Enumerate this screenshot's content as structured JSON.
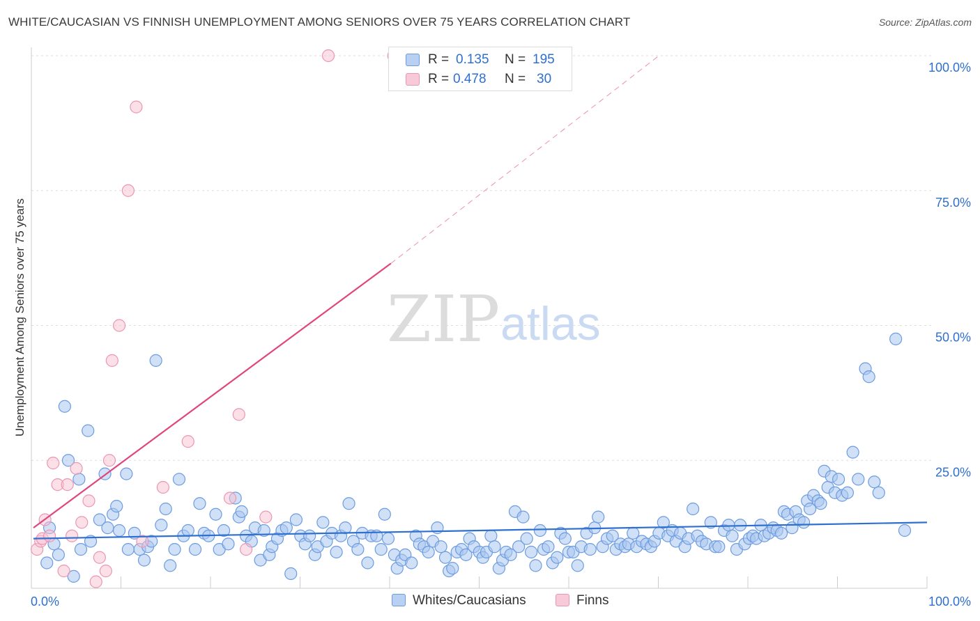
{
  "title": "WHITE/CAUCASIAN VS FINNISH UNEMPLOYMENT AMONG SENIORS OVER 75 YEARS CORRELATION CHART",
  "source": "Source: ZipAtlas.com",
  "watermark": {
    "zip": "ZIP",
    "atlas": "atlas"
  },
  "colors": {
    "blue": "#2e6fcf",
    "blue_fill": "#a9c6ef",
    "blue_stroke": "#6b9be0",
    "pink": "#e0457e",
    "pink_fill": "#f7c1d2",
    "pink_stroke": "#ec95b3",
    "grid": "#dddddd"
  },
  "legend": {
    "r_label": "R =",
    "n_label": "N =",
    "rows": [
      {
        "series": "Whites/Caucasians",
        "r": "0.135",
        "n": "195"
      },
      {
        "series": "Finns",
        "r": "0.478",
        "n": "30"
      }
    ]
  },
  "bottom_legend": [
    "Whites/Caucasians",
    "Finns"
  ],
  "chart_data": {
    "type": "scatter",
    "title": "WHITE/CAUCASIAN VS FINNISH UNEMPLOYMENT AMONG SENIORS OVER 75 YEARS CORRELATION CHART",
    "xlabel": "",
    "ylabel": "Unemployment Among Seniors over 75 years",
    "xlim": [
      0,
      100
    ],
    "ylim": [
      0,
      100
    ],
    "x_tick_labels": [
      {
        "value": 0,
        "label": "0.0%"
      },
      {
        "value": 100,
        "label": "100.0%"
      }
    ],
    "y_tick_labels": [
      {
        "value": 25,
        "label": "25.0%"
      },
      {
        "value": 50,
        "label": "50.0%"
      },
      {
        "value": 75,
        "label": "75.0%"
      },
      {
        "value": 100,
        "label": "100.0%"
      }
    ],
    "grid": true,
    "series": [
      {
        "name": "Whites/Caucasians",
        "trend": {
          "x0": 0,
          "y0": 10.5,
          "x1": 100,
          "y1": 13.5
        },
        "points": [
          [
            1.8,
            12.5
          ],
          [
            1.5,
            6.0
          ],
          [
            2.3,
            9.5
          ],
          [
            2.8,
            7.5
          ],
          [
            3.5,
            35.0
          ],
          [
            3.9,
            25.0
          ],
          [
            4.5,
            3.5
          ],
          [
            5.1,
            21.5
          ],
          [
            5.3,
            8.5
          ],
          [
            6.1,
            30.5
          ],
          [
            6.4,
            10.0
          ],
          [
            7.4,
            14.0
          ],
          [
            8.0,
            22.5
          ],
          [
            8.3,
            12.5
          ],
          [
            8.9,
            15.0
          ],
          [
            9.3,
            16.5
          ],
          [
            9.6,
            12.0
          ],
          [
            10.4,
            22.5
          ],
          [
            10.6,
            8.5
          ],
          [
            11.3,
            11.5
          ],
          [
            11.9,
            8.5
          ],
          [
            12.4,
            6.5
          ],
          [
            12.8,
            9.0
          ],
          [
            13.2,
            10.0
          ],
          [
            13.7,
            43.5
          ],
          [
            14.3,
            13.0
          ],
          [
            14.8,
            16.0
          ],
          [
            15.3,
            5.5
          ],
          [
            15.8,
            8.5
          ],
          [
            16.3,
            21.5
          ],
          [
            16.8,
            11.0
          ],
          [
            17.3,
            12.0
          ],
          [
            18.1,
            8.5
          ],
          [
            18.6,
            17.0
          ],
          [
            19.1,
            11.5
          ],
          [
            19.6,
            11.0
          ],
          [
            20.4,
            15.0
          ],
          [
            20.8,
            8.5
          ],
          [
            21.3,
            12.0
          ],
          [
            21.8,
            9.5
          ],
          [
            22.6,
            18.0
          ],
          [
            23.0,
            14.5
          ],
          [
            23.3,
            15.5
          ],
          [
            23.8,
            11.0
          ],
          [
            24.4,
            10.0
          ],
          [
            24.8,
            12.5
          ],
          [
            25.4,
            6.5
          ],
          [
            25.8,
            12.0
          ],
          [
            26.4,
            7.5
          ],
          [
            26.7,
            9.0
          ],
          [
            27.3,
            10.5
          ],
          [
            27.8,
            12.0
          ],
          [
            28.3,
            12.5
          ],
          [
            28.8,
            4.0
          ],
          [
            29.4,
            14.0
          ],
          [
            29.9,
            11.0
          ],
          [
            30.4,
            9.5
          ],
          [
            30.9,
            11.0
          ],
          [
            31.5,
            7.5
          ],
          [
            31.8,
            9.0
          ],
          [
            32.4,
            13.5
          ],
          [
            32.8,
            10.0
          ],
          [
            33.4,
            11.5
          ],
          [
            33.9,
            8.0
          ],
          [
            34.4,
            11.0
          ],
          [
            34.9,
            12.5
          ],
          [
            35.3,
            17.0
          ],
          [
            35.8,
            10.0
          ],
          [
            36.3,
            8.5
          ],
          [
            36.8,
            11.5
          ],
          [
            37.4,
            6.0
          ],
          [
            37.8,
            11.0
          ],
          [
            38.4,
            11.0
          ],
          [
            38.9,
            8.5
          ],
          [
            39.3,
            15.0
          ],
          [
            39.7,
            10.5
          ],
          [
            40.4,
            7.5
          ],
          [
            40.7,
            5.0
          ],
          [
            41.2,
            6.5
          ],
          [
            41.6,
            7.5
          ],
          [
            42.3,
            6.0
          ],
          [
            42.8,
            11.0
          ],
          [
            43.2,
            9.5
          ],
          [
            43.7,
            9.0
          ],
          [
            44.2,
            8.0
          ],
          [
            44.7,
            10.0
          ],
          [
            45.2,
            12.5
          ],
          [
            45.6,
            9.0
          ],
          [
            46.1,
            7.0
          ],
          [
            46.5,
            4.5
          ],
          [
            46.9,
            5.0
          ],
          [
            47.4,
            8.0
          ],
          [
            47.9,
            8.5
          ],
          [
            48.4,
            7.5
          ],
          [
            48.8,
            10.5
          ],
          [
            49.3,
            9.0
          ],
          [
            49.9,
            8.0
          ],
          [
            50.3,
            7.0
          ],
          [
            50.7,
            8.0
          ],
          [
            51.2,
            11.0
          ],
          [
            51.6,
            9.0
          ],
          [
            52.1,
            5.0
          ],
          [
            52.5,
            6.5
          ],
          [
            52.9,
            8.0
          ],
          [
            53.4,
            7.5
          ],
          [
            53.9,
            15.5
          ],
          [
            54.3,
            9.0
          ],
          [
            54.8,
            14.5
          ],
          [
            55.2,
            10.5
          ],
          [
            55.7,
            8.0
          ],
          [
            56.2,
            5.5
          ],
          [
            56.7,
            12.0
          ],
          [
            57.1,
            8.5
          ],
          [
            57.6,
            9.0
          ],
          [
            58.1,
            6.0
          ],
          [
            58.6,
            7.0
          ],
          [
            59.0,
            11.5
          ],
          [
            59.5,
            10.5
          ],
          [
            59.9,
            8.0
          ],
          [
            60.4,
            8.0
          ],
          [
            60.9,
            5.5
          ],
          [
            61.3,
            9.0
          ],
          [
            61.9,
            11.5
          ],
          [
            62.3,
            8.5
          ],
          [
            62.8,
            12.5
          ],
          [
            63.2,
            14.5
          ],
          [
            63.7,
            9.0
          ],
          [
            64.2,
            10.5
          ],
          [
            64.8,
            11.0
          ],
          [
            65.2,
            8.5
          ],
          [
            65.7,
            9.5
          ],
          [
            66.2,
            9.0
          ],
          [
            66.6,
            9.5
          ],
          [
            67.1,
            11.5
          ],
          [
            67.5,
            9.0
          ],
          [
            68.1,
            10.0
          ],
          [
            68.6,
            9.5
          ],
          [
            69.1,
            9.0
          ],
          [
            69.5,
            10.0
          ],
          [
            70.0,
            11.5
          ],
          [
            70.5,
            13.5
          ],
          [
            71.0,
            11.0
          ],
          [
            71.5,
            12.0
          ],
          [
            71.9,
            10.0
          ],
          [
            72.4,
            11.5
          ],
          [
            72.9,
            9.0
          ],
          [
            73.3,
            10.5
          ],
          [
            73.8,
            16.0
          ],
          [
            74.3,
            11.0
          ],
          [
            74.8,
            10.0
          ],
          [
            75.3,
            9.5
          ],
          [
            75.8,
            13.5
          ],
          [
            76.3,
            9.0
          ],
          [
            76.7,
            9.0
          ],
          [
            77.3,
            12.0
          ],
          [
            77.8,
            13.0
          ],
          [
            78.2,
            11.0
          ],
          [
            78.7,
            8.5
          ],
          [
            79.1,
            13.0
          ],
          [
            79.6,
            9.5
          ],
          [
            80.1,
            10.5
          ],
          [
            80.5,
            11.0
          ],
          [
            80.9,
            10.5
          ],
          [
            81.4,
            13.0
          ],
          [
            81.8,
            11.0
          ],
          [
            82.3,
            11.5
          ],
          [
            82.8,
            12.5
          ],
          [
            83.2,
            12.0
          ],
          [
            83.7,
            11.5
          ],
          [
            84.0,
            15.5
          ],
          [
            84.4,
            15.0
          ],
          [
            84.9,
            12.5
          ],
          [
            85.3,
            15.5
          ],
          [
            85.7,
            14.0
          ],
          [
            86.2,
            13.5
          ],
          [
            86.6,
            17.5
          ],
          [
            86.9,
            16.0
          ],
          [
            87.3,
            18.5
          ],
          [
            87.8,
            17.5
          ],
          [
            88.1,
            17.0
          ],
          [
            88.5,
            23.0
          ],
          [
            88.9,
            20.0
          ],
          [
            89.3,
            22.0
          ],
          [
            89.7,
            19.0
          ],
          [
            90.1,
            21.5
          ],
          [
            90.5,
            18.5
          ],
          [
            91.1,
            19.0
          ],
          [
            91.7,
            26.5
          ],
          [
            92.3,
            21.5
          ],
          [
            93.1,
            42.0
          ],
          [
            93.5,
            40.5
          ],
          [
            94.1,
            21.0
          ],
          [
            94.6,
            19.0
          ],
          [
            96.5,
            47.5
          ],
          [
            97.5,
            12.0
          ]
        ]
      },
      {
        "name": "Finns",
        "trend": {
          "x0": 0,
          "y0": 12.5,
          "x1": 40,
          "y1": 61.5,
          "dashed_to": {
            "x": 70,
            "y": 100
          }
        },
        "points": [
          [
            0.4,
            8.5
          ],
          [
            0.8,
            10.0
          ],
          [
            1.0,
            10.5
          ],
          [
            1.3,
            14.0
          ],
          [
            1.8,
            11.0
          ],
          [
            2.2,
            24.5
          ],
          [
            2.7,
            20.5
          ],
          [
            3.4,
            4.5
          ],
          [
            3.8,
            20.5
          ],
          [
            4.3,
            11.0
          ],
          [
            4.8,
            23.5
          ],
          [
            5.4,
            13.5
          ],
          [
            6.2,
            17.5
          ],
          [
            7.0,
            2.5
          ],
          [
            7.4,
            7.0
          ],
          [
            8.1,
            4.5
          ],
          [
            8.5,
            25.0
          ],
          [
            8.8,
            43.5
          ],
          [
            9.6,
            50.0
          ],
          [
            10.6,
            75.0
          ],
          [
            11.5,
            90.5
          ],
          [
            12.2,
            10.0
          ],
          [
            14.5,
            20.0
          ],
          [
            17.3,
            28.5
          ],
          [
            22.0,
            18.0
          ],
          [
            23.0,
            33.5
          ],
          [
            23.8,
            8.5
          ],
          [
            26.0,
            14.5
          ],
          [
            33.0,
            100.0
          ],
          [
            40.3,
            100.0
          ]
        ]
      }
    ]
  }
}
